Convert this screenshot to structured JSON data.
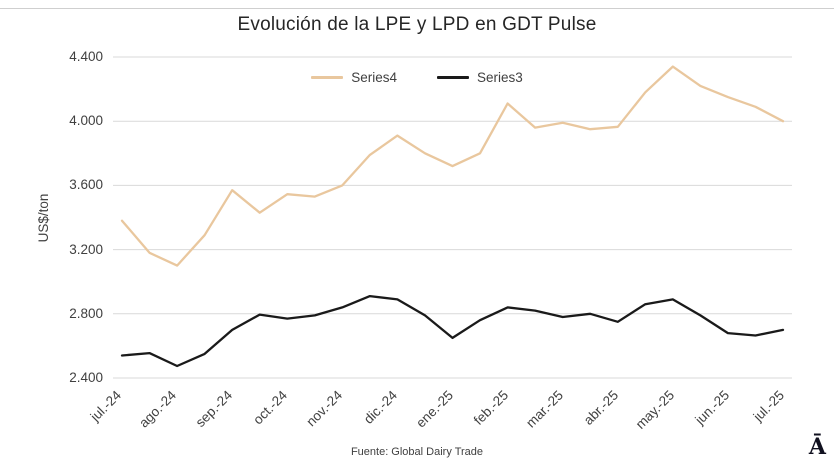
{
  "footer": {
    "source": "Fuente: Global Dairy Trade",
    "logo": "Ā"
  },
  "chart_data": {
    "type": "line",
    "title": "Evolución de la LPE y LPD en GDT Pulse",
    "xlabel": "",
    "ylabel": "US$/ton",
    "ylim": [
      2400,
      4400
    ],
    "grid": true,
    "legend_position": "top-center",
    "gridline_color": "#D9D9D9",
    "yticks": [
      "2.400",
      "2.800",
      "3.200",
      "3.600",
      "4.000",
      "4.400"
    ],
    "ytick_values": [
      2400,
      2800,
      3200,
      3600,
      4000,
      4400
    ],
    "categories": [
      "jul.-24",
      "ago.-24",
      "sep.-24",
      "oct.-24",
      "nov.-24",
      "dic.-24",
      "ene.-25",
      "feb.-25",
      "mar.-25",
      "abr.-25",
      "may.-25",
      "jun.-25",
      "jul.-25"
    ],
    "points_per_month": 2,
    "series": [
      {
        "name": "Series4",
        "color": "#E9C79E",
        "values": [
          3380,
          3180,
          3100,
          3290,
          3570,
          3430,
          3545,
          3530,
          3600,
          3790,
          3910,
          3800,
          3720,
          3800,
          4110,
          3960,
          3990,
          3950,
          3965,
          4180,
          4340,
          4220,
          4150,
          4090,
          4000
        ]
      },
      {
        "name": "Series3",
        "color": "#1A1A1A",
        "values": [
          2540,
          2555,
          2475,
          2550,
          2700,
          2795,
          2770,
          2790,
          2840,
          2910,
          2890,
          2790,
          2650,
          2760,
          2840,
          2820,
          2780,
          2800,
          2750,
          2860,
          2890,
          2790,
          2680,
          2665,
          2700
        ]
      }
    ]
  }
}
